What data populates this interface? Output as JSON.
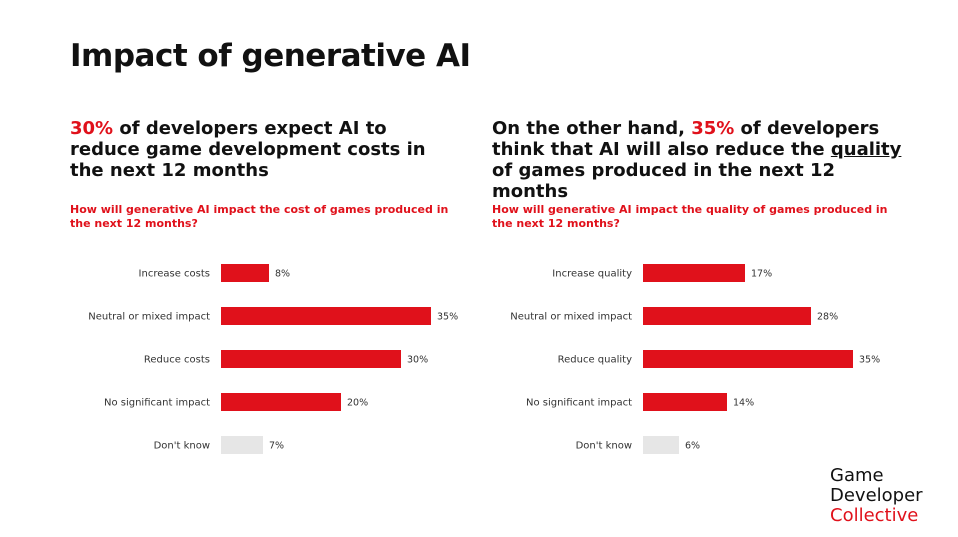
{
  "title": "Impact of generative AI",
  "left": {
    "headline": {
      "highlight": "30%",
      "rest": " of developers expect AI to reduce game development costs in the next 12 months"
    },
    "question": "How will generative AI impact the cost of games produced in the next 12 months?"
  },
  "right": {
    "headline": {
      "prefix": "On the other hand, ",
      "highlight": "35%",
      "middle": " of developers think that AI will also reduce the ",
      "underline": "quality",
      "suffix": " of games produced in the next 12 months"
    },
    "question": "How will generative AI impact the quality of games produced in the next 12 months?"
  },
  "logo": {
    "line1": "Game",
    "line2": "Developer",
    "line3": "Collective"
  },
  "colors": {
    "accent": "#e0111b",
    "neutral_bar": "#e6e6e6",
    "text": "#111111"
  },
  "chart_data": [
    {
      "type": "bar",
      "orientation": "horizontal",
      "categories": [
        "Increase costs",
        "Neutral or mixed impact",
        "Reduce costs",
        "No significant impact",
        "Don't know"
      ],
      "values": [
        8,
        35,
        30,
        20,
        7
      ],
      "value_labels": [
        "8%",
        "35%",
        "30%",
        "20%",
        "7%"
      ],
      "bar_colors": [
        "#e0111b",
        "#e0111b",
        "#e0111b",
        "#e0111b",
        "#e6e6e6"
      ],
      "xlim": [
        0,
        35
      ],
      "grid": false
    },
    {
      "type": "bar",
      "orientation": "horizontal",
      "categories": [
        "Increase quality",
        "Neutral or mixed impact",
        "Reduce quality",
        "No significant impact",
        "Don't know"
      ],
      "values": [
        17,
        28,
        35,
        14,
        6
      ],
      "value_labels": [
        "17%",
        "28%",
        "35%",
        "14%",
        "6%"
      ],
      "bar_colors": [
        "#e0111b",
        "#e0111b",
        "#e0111b",
        "#e0111b",
        "#e6e6e6"
      ],
      "xlim": [
        0,
        35
      ],
      "grid": false
    }
  ]
}
